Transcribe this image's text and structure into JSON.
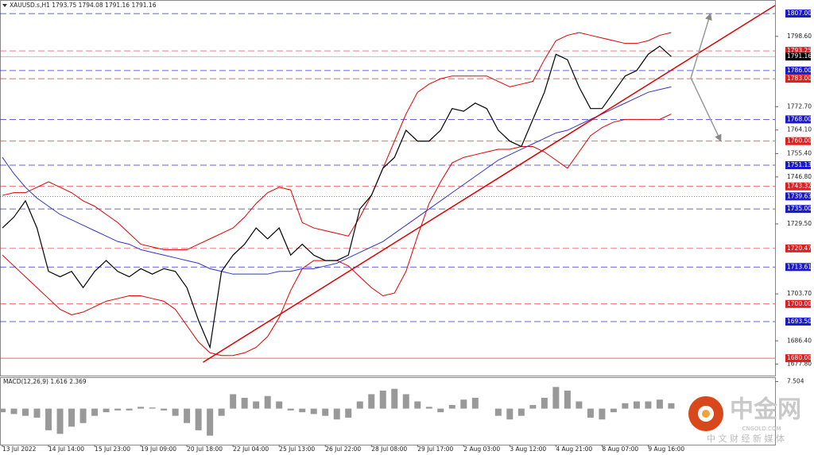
{
  "chart_data": [
    {
      "type": "line",
      "title": "XAUUSD.s,H1 1793.75 1794.08 1791.16 1791.16",
      "categories": [
        "13 Jul 2022",
        null,
        null,
        null,
        "14 Jul 14:00",
        null,
        null,
        null,
        "15 Jul 23:00",
        null,
        null,
        null,
        "19 Jul 09:00",
        null,
        null,
        null,
        "20 Jul 18:00",
        null,
        null,
        null,
        "22 Jul 04:00",
        null,
        null,
        null,
        "25 Jul 13:00",
        null,
        null,
        null,
        "26 Jul 22:00",
        null,
        null,
        null,
        "28 Jul 08:00",
        null,
        null,
        null,
        "29 Jul 17:00",
        null,
        null,
        null,
        "2 Aug 03:00",
        null,
        null,
        null,
        "3 Aug 12:00",
        null,
        null,
        null,
        "4 Aug 21:00",
        null,
        null,
        null,
        "8 Aug 07:00",
        null,
        null,
        null,
        "9 Aug 16:00",
        null,
        null
      ],
      "series": [
        {
          "color": "#e00000",
          "values": [
            1740,
            1741,
            1741,
            1743,
            1745,
            1743,
            1741,
            1738,
            1736,
            1733,
            1730,
            1726,
            1722,
            1721,
            1720,
            1720,
            1720,
            1722,
            1724,
            1726,
            1728,
            1732,
            1737,
            1741,
            1743,
            1742,
            1730,
            1728,
            1727,
            1726,
            1725,
            1732,
            1740,
            1750,
            1760,
            1770,
            1778,
            1781,
            1783,
            1784,
            1784,
            1784,
            1784,
            1782,
            1780,
            1781,
            1782,
            1790,
            1797,
            1799,
            1800,
            1799,
            1798,
            1797,
            1796,
            1796,
            1797,
            1799,
            1800
          ]
        },
        {
          "color": "#e00000",
          "values": [
            1718,
            1714,
            1710,
            1706,
            1702,
            1698,
            1696,
            1697,
            1699,
            1701,
            1702,
            1703,
            1703,
            1702,
            1701,
            1698,
            1692,
            1686,
            1682,
            1681,
            1681,
            1682,
            1684,
            1688,
            1695,
            1705,
            1713,
            1716,
            1716,
            1716,
            1714,
            1710,
            1706,
            1703,
            1704,
            1712,
            1725,
            1737,
            1745,
            1752,
            1754,
            1755,
            1756,
            1757,
            1757,
            1758,
            1758,
            1756,
            1753,
            1750,
            1756,
            1762,
            1765,
            1767,
            1768,
            1768,
            1768,
            1768,
            1770
          ]
        },
        {
          "color": "#3333cc",
          "values": [
            1754,
            1748,
            1743,
            1739,
            1736,
            1733,
            1731,
            1729,
            1727,
            1725,
            1723,
            1722,
            1720,
            1719,
            1718,
            1717,
            1716,
            1715,
            1713,
            1712,
            1711,
            1711,
            1711,
            1711,
            1712,
            1712,
            1713,
            1713,
            1714,
            1715,
            1717,
            1719,
            1721,
            1723,
            1726,
            1729,
            1732,
            1735,
            1738,
            1741,
            1744,
            1747,
            1750,
            1753,
            1755,
            1757,
            1759,
            1761,
            1763,
            1764,
            1766,
            1768,
            1770,
            1772,
            1774,
            1776,
            1778,
            1779,
            1780
          ]
        },
        {
          "color": "#000000",
          "values": [
            1728,
            1732,
            1738,
            1728,
            1712,
            1710,
            1712,
            1706,
            1712,
            1716,
            1712,
            1710,
            1713,
            1711,
            1713,
            1712,
            1706,
            1694,
            1684,
            1712,
            1718,
            1722,
            1728,
            1724,
            1728,
            1718,
            1722,
            1718,
            1716,
            1716,
            1718,
            1735,
            1740,
            1750,
            1754,
            1764,
            1760,
            1760,
            1764,
            1772,
            1771,
            1774,
            1772,
            1764,
            1760,
            1758,
            1768,
            1778,
            1792,
            1790,
            1780,
            1772,
            1772,
            1778,
            1784,
            1786,
            1792,
            1795,
            1791.16
          ]
        }
      ],
      "xlim": [
        -0.2,
        67
      ],
      "ylim": [
        1673.6,
        1812
      ],
      "yticks": [
        {
          "value": 1798.6,
          "label": "1798.60"
        },
        {
          "value": 1772.7,
          "label": "1772.70"
        },
        {
          "value": 1764.1,
          "label": "1764.10"
        },
        {
          "value": 1755.4,
          "label": "1755.40"
        },
        {
          "value": 1746.8,
          "label": "1746.80"
        },
        {
          "value": 1729.5,
          "label": "1729.50"
        },
        {
          "value": 1703.7,
          "label": "1703.70"
        },
        {
          "value": 1686.4,
          "label": "1686.40"
        },
        {
          "value": 1677.8,
          "label": "1677.80"
        }
      ],
      "levels": [
        {
          "value": 1807,
          "label": "1807.00",
          "color": "#1a1acc",
          "style": "dashed"
        },
        {
          "value": 1793.25,
          "label": "1793.25",
          "color": "#e02020",
          "style": "dashed"
        },
        {
          "value": 1791.16,
          "label": "1791.16",
          "color": "#000000",
          "style": "solid"
        },
        {
          "value": 1786,
          "label": "1786.00",
          "color": "#1a1acc",
          "style": "dashed"
        },
        {
          "value": 1783,
          "label": "1783.00",
          "color": "#e02020",
          "style": "dashed"
        },
        {
          "value": 1768,
          "label": "1768.00",
          "color": "#1a1acc",
          "style": "dashed"
        },
        {
          "value": 1760,
          "label": "1760.00",
          "color": "#e02020",
          "style": "dashed"
        },
        {
          "value": 1751.13,
          "label": "1751.13",
          "color": "#1a1acc",
          "style": "dashed"
        },
        {
          "value": 1743.32,
          "label": "1743.32",
          "color": "#e02020",
          "style": "dashed"
        },
        {
          "value": 1739.63,
          "label": "1739.63",
          "color": "#1a1acc",
          "style": "dotted"
        },
        {
          "value": 1735,
          "label": "1735.00",
          "color": "#1a1acc",
          "style": "dashed"
        },
        {
          "value": 1720.47,
          "label": "1720.47",
          "color": "#e02020",
          "style": "dashed"
        },
        {
          "value": 1713.61,
          "label": "1713.61",
          "color": "#1a1acc",
          "style": "dashed"
        },
        {
          "value": 1700,
          "label": "1700.00",
          "color": "#e02020",
          "style": "dashed"
        },
        {
          "value": 1693.5,
          "label": "1693.50",
          "color": "#1a1acc",
          "style": "dashed"
        },
        {
          "value": 1680,
          "label": "1680.00",
          "color": "#e02020",
          "style": "solid"
        }
      ],
      "trendline": {
        "color": "#e00000",
        "x": [
          17.4,
          67
        ],
        "y": [
          1678.5,
          1810
        ]
      },
      "projections": {
        "color": "#999999",
        "x": [
          59.7,
          61.4,
          62.3
        ],
        "y": [
          1783.3,
          1807,
          1760
        ]
      }
    },
    {
      "type": "bar",
      "title": "MACD(12,26,9) 1.616 2.369",
      "color": "#999999",
      "values": [
        -1,
        -1.5,
        -2,
        -2.5,
        -6,
        -7,
        -5,
        -4,
        -2,
        -1,
        -0.5,
        -0.5,
        0.5,
        0.3,
        -0.5,
        -2,
        -4,
        -6,
        -7.5,
        -2,
        4,
        3,
        2,
        3.5,
        2,
        -0.5,
        -1,
        -1.5,
        -2,
        -3,
        -2.5,
        2,
        4,
        5,
        5.5,
        4,
        2,
        0.5,
        -1,
        1,
        2.5,
        3,
        0,
        -2,
        -3,
        -2,
        1,
        3,
        6,
        5,
        2,
        -2.5,
        -3,
        -1,
        1.5,
        2,
        2,
        2.5,
        1.5
      ],
      "ylim": [
        -10,
        8.5
      ],
      "yticks": [
        7.504
      ]
    }
  ],
  "watermark": {
    "brand": "中金网",
    "site": "CNGOLD.COM",
    "slogan": "中 文 财 经 新 媒 体"
  }
}
